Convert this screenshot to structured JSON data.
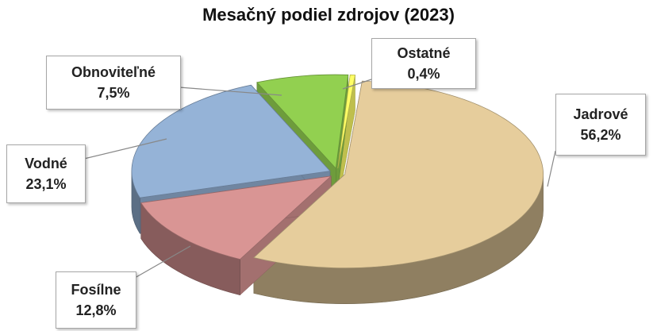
{
  "chart_data": {
    "type": "pie",
    "title": "Mesačný podiel zdrojov (2023)",
    "categories": [
      "Jadrové",
      "Fosílne",
      "Vodné",
      "Obnoviteľné",
      "Ostatné"
    ],
    "values": [
      56.2,
      12.8,
      23.1,
      7.5,
      0.4
    ],
    "value_labels": [
      "56,2%",
      "12,8%",
      "23,1%",
      "7,5%",
      "0,4%"
    ],
    "colors": [
      "#e6cd9c",
      "#d99594",
      "#95b3d7",
      "#92d050",
      "#ffff66"
    ]
  }
}
